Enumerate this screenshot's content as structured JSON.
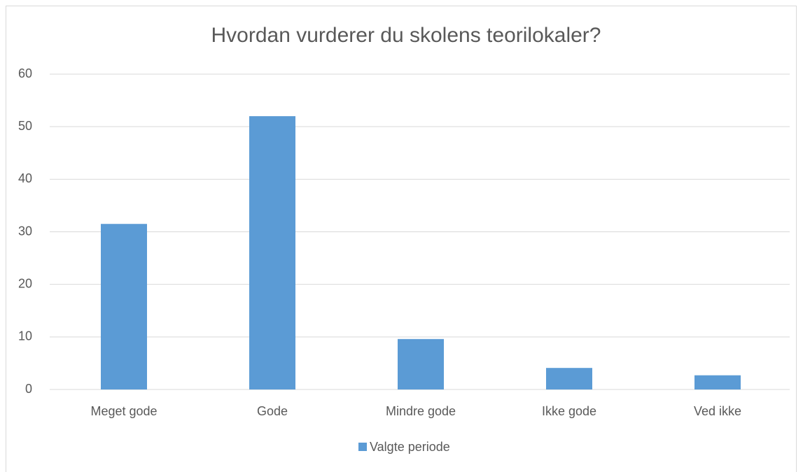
{
  "chart_data": {
    "type": "bar",
    "title": "Hvordan vurderer du skolens teorilokaler?",
    "categories": [
      "Meget gode",
      "Gode",
      "Mindre gode",
      "Ikke gode",
      "Ved ikke"
    ],
    "series": [
      {
        "name": "Valgte periode",
        "color": "#5b9bd5",
        "values": [
          31.5,
          52,
          9.6,
          4.1,
          2.7
        ]
      }
    ],
    "ylim": [
      0,
      60
    ],
    "yticks": [
      0,
      10,
      20,
      30,
      40,
      50,
      60
    ],
    "grid": true,
    "legend": "bottom"
  }
}
